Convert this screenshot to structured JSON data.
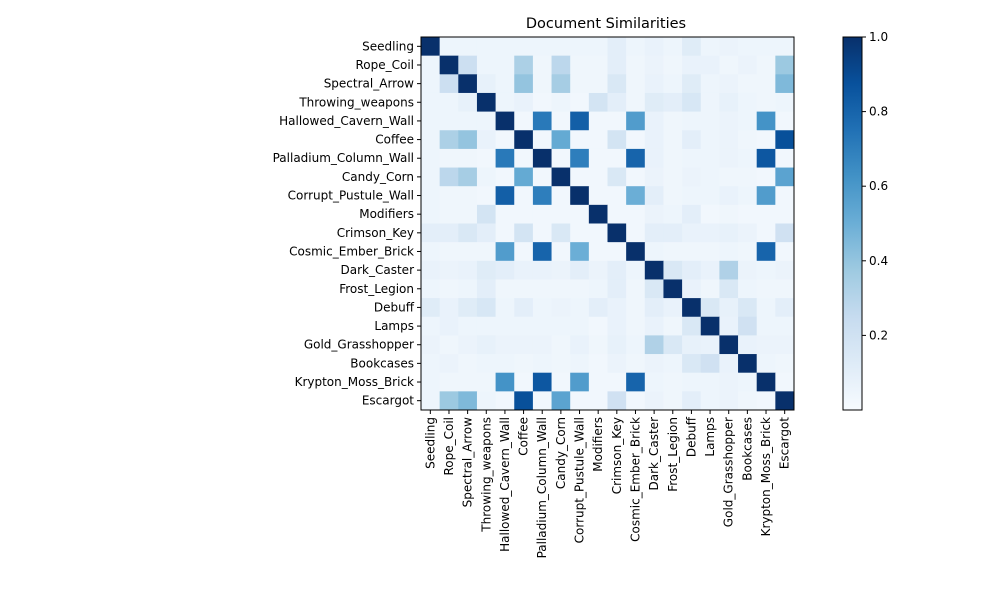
{
  "chart_data": {
    "type": "heatmap",
    "title": "Document Similarities",
    "xlabel": "",
    "ylabel": "",
    "labels": [
      "Seedling",
      "Rope_Coil",
      "Spectral_Arrow",
      "Throwing_weapons",
      "Hallowed_Cavern_Wall",
      "Coffee",
      "Palladium_Column_Wall",
      "Candy_Corn",
      "Corrupt_Pustule_Wall",
      "Modifiers",
      "Crimson_Key",
      "Cosmic_Ember_Brick",
      "Dark_Caster",
      "Frost_Legion",
      "Debuff",
      "Lamps",
      "Gold_Grasshopper",
      "Bookcases",
      "Krypton_Moss_Brick",
      "Escargot"
    ],
    "values": [
      [
        1.0,
        0.05,
        0.05,
        0.05,
        0.05,
        0.05,
        0.05,
        0.05,
        0.05,
        0.05,
        0.1,
        0.05,
        0.07,
        0.05,
        0.12,
        0.05,
        0.06,
        0.05,
        0.05,
        0.05
      ],
      [
        0.05,
        1.0,
        0.22,
        0.05,
        0.05,
        0.33,
        0.04,
        0.28,
        0.04,
        0.04,
        0.1,
        0.04,
        0.06,
        0.04,
        0.07,
        0.07,
        0.04,
        0.06,
        0.04,
        0.38
      ],
      [
        0.05,
        0.22,
        1.0,
        0.08,
        0.05,
        0.4,
        0.04,
        0.35,
        0.04,
        0.04,
        0.15,
        0.04,
        0.07,
        0.05,
        0.12,
        0.05,
        0.06,
        0.04,
        0.04,
        0.45
      ],
      [
        0.05,
        0.05,
        0.08,
        1.0,
        0.05,
        0.07,
        0.03,
        0.05,
        0.03,
        0.18,
        0.1,
        0.04,
        0.12,
        0.1,
        0.16,
        0.05,
        0.08,
        0.05,
        0.04,
        0.05
      ],
      [
        0.05,
        0.05,
        0.05,
        0.05,
        1.0,
        0.03,
        0.72,
        0.03,
        0.82,
        0.03,
        0.03,
        0.58,
        0.07,
        0.04,
        0.05,
        0.05,
        0.06,
        0.05,
        0.62,
        0.03
      ],
      [
        0.05,
        0.33,
        0.4,
        0.07,
        0.03,
        1.0,
        0.03,
        0.52,
        0.03,
        0.03,
        0.18,
        0.03,
        0.07,
        0.04,
        0.1,
        0.05,
        0.06,
        0.04,
        0.03,
        0.88
      ],
      [
        0.05,
        0.04,
        0.04,
        0.03,
        0.72,
        0.03,
        1.0,
        0.03,
        0.7,
        0.03,
        0.03,
        0.8,
        0.07,
        0.04,
        0.05,
        0.05,
        0.06,
        0.05,
        0.85,
        0.03
      ],
      [
        0.05,
        0.28,
        0.35,
        0.05,
        0.03,
        0.52,
        0.03,
        1.0,
        0.03,
        0.03,
        0.15,
        0.03,
        0.06,
        0.04,
        0.06,
        0.05,
        0.04,
        0.04,
        0.03,
        0.55
      ],
      [
        0.05,
        0.04,
        0.04,
        0.03,
        0.82,
        0.03,
        0.7,
        0.03,
        1.0,
        0.03,
        0.03,
        0.5,
        0.1,
        0.04,
        0.05,
        0.05,
        0.07,
        0.05,
        0.58,
        0.03
      ],
      [
        0.05,
        0.04,
        0.04,
        0.18,
        0.03,
        0.03,
        0.03,
        0.03,
        0.03,
        1.0,
        0.03,
        0.03,
        0.06,
        0.05,
        0.1,
        0.03,
        0.04,
        0.03,
        0.03,
        0.03
      ],
      [
        0.1,
        0.1,
        0.15,
        0.1,
        0.03,
        0.18,
        0.03,
        0.15,
        0.03,
        0.03,
        1.0,
        0.03,
        0.1,
        0.1,
        0.07,
        0.07,
        0.08,
        0.06,
        0.03,
        0.2
      ],
      [
        0.05,
        0.04,
        0.04,
        0.04,
        0.58,
        0.03,
        0.8,
        0.03,
        0.5,
        0.03,
        0.03,
        1.0,
        0.05,
        0.04,
        0.04,
        0.04,
        0.05,
        0.04,
        0.8,
        0.03
      ],
      [
        0.07,
        0.06,
        0.07,
        0.12,
        0.1,
        0.07,
        0.07,
        0.06,
        0.1,
        0.06,
        0.1,
        0.05,
        1.0,
        0.15,
        0.1,
        0.07,
        0.32,
        0.06,
        0.05,
        0.06
      ],
      [
        0.05,
        0.04,
        0.05,
        0.1,
        0.04,
        0.04,
        0.04,
        0.04,
        0.04,
        0.05,
        0.1,
        0.04,
        0.15,
        1.0,
        0.07,
        0.04,
        0.15,
        0.05,
        0.04,
        0.04
      ],
      [
        0.12,
        0.07,
        0.12,
        0.16,
        0.05,
        0.1,
        0.05,
        0.06,
        0.05,
        0.1,
        0.07,
        0.04,
        0.1,
        0.07,
        1.0,
        0.15,
        0.08,
        0.15,
        0.05,
        0.1
      ],
      [
        0.05,
        0.07,
        0.05,
        0.05,
        0.05,
        0.05,
        0.05,
        0.05,
        0.05,
        0.03,
        0.07,
        0.04,
        0.07,
        0.04,
        0.15,
        1.0,
        0.07,
        0.2,
        0.05,
        0.05
      ],
      [
        0.06,
        0.04,
        0.06,
        0.08,
        0.06,
        0.06,
        0.06,
        0.04,
        0.07,
        0.04,
        0.08,
        0.05,
        0.32,
        0.15,
        0.08,
        0.07,
        1.0,
        0.07,
        0.06,
        0.06
      ],
      [
        0.05,
        0.06,
        0.04,
        0.05,
        0.05,
        0.04,
        0.05,
        0.04,
        0.05,
        0.03,
        0.06,
        0.04,
        0.06,
        0.05,
        0.15,
        0.2,
        0.07,
        1.0,
        0.05,
        0.04
      ],
      [
        0.05,
        0.04,
        0.04,
        0.04,
        0.62,
        0.03,
        0.85,
        0.03,
        0.58,
        0.03,
        0.03,
        0.8,
        0.05,
        0.04,
        0.05,
        0.05,
        0.06,
        0.05,
        1.0,
        0.03
      ],
      [
        0.05,
        0.38,
        0.45,
        0.05,
        0.03,
        0.88,
        0.03,
        0.55,
        0.03,
        0.03,
        0.2,
        0.03,
        0.06,
        0.04,
        0.1,
        0.05,
        0.06,
        0.04,
        0.03,
        1.0
      ]
    ],
    "colorbar": {
      "min": 0.0,
      "max": 1.0,
      "ticks": [
        0.2,
        0.4,
        0.6,
        0.8,
        1.0
      ],
      "tick_labels": [
        "0.2",
        "0.4",
        "0.6",
        "0.8",
        "1.0"
      ],
      "colormap": "Blues",
      "colors": [
        "#f7fbff",
        "#deebf7",
        "#c6dbef",
        "#9ecae1",
        "#6baed6",
        "#4292c6",
        "#2171b5",
        "#08519c",
        "#08306b"
      ]
    }
  }
}
